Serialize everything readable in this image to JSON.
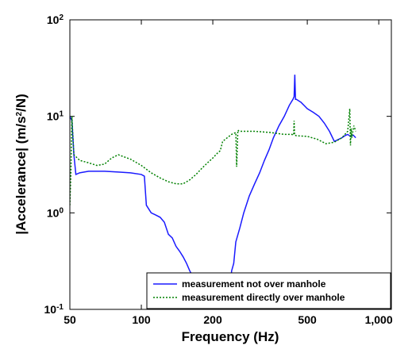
{
  "chart_data": {
    "type": "line",
    "xlabel": "Frequency (Hz)",
    "ylabel": [
      "|Accelerance| (m/s",
      "2",
      "/N)"
    ],
    "xscale": "log",
    "yscale": "log",
    "xlim": [
      50,
      1130
    ],
    "ylim": [
      0.1,
      100
    ],
    "xticks": [
      50,
      100,
      200,
      500,
      {
        "value": 1000,
        "label": "1,000"
      }
    ],
    "yticks": [
      {
        "value": 0.1,
        "label": "10",
        "sup": "-1"
      },
      {
        "value": 1,
        "label": "10",
        "sup": "0"
      },
      {
        "value": 10,
        "label": "10",
        "sup": "1"
      },
      {
        "value": 100,
        "label": "10",
        "sup": "2"
      }
    ],
    "legend": "lower right",
    "series": [
      {
        "name": "measurement not over manhole",
        "color": "#1a1aff",
        "dash": "solid",
        "x": [
          50,
          51,
          52,
          53,
          55,
          60,
          70,
          80,
          90,
          100,
          103,
          105,
          110,
          115,
          120,
          125,
          130,
          135,
          140,
          145,
          150,
          155,
          160,
          165,
          170,
          175,
          180,
          185,
          190,
          200,
          210,
          220,
          230,
          235,
          240,
          245,
          250,
          260,
          270,
          285,
          300,
          315,
          330,
          345,
          360,
          380,
          400,
          420,
          435,
          440,
          443,
          446,
          450,
          470,
          500,
          530,
          560,
          590,
          620,
          650,
          680,
          700,
          720,
          740,
          760,
          780,
          800
        ],
        "values": [
          10,
          9,
          4,
          2.5,
          2.6,
          2.7,
          2.7,
          2.65,
          2.6,
          2.5,
          2.4,
          1.2,
          1.0,
          0.95,
          0.9,
          0.8,
          0.6,
          0.55,
          0.45,
          0.4,
          0.35,
          0.3,
          0.25,
          0.22,
          0.2,
          0.18,
          0.15,
          0.12,
          0.1,
          0.09,
          0.08,
          0.09,
          0.1,
          0.12,
          0.25,
          0.3,
          0.5,
          0.7,
          1.0,
          1.5,
          2.0,
          2.6,
          3.5,
          4.5,
          6,
          8,
          10,
          13,
          15,
          16,
          27,
          15,
          15,
          14,
          12,
          11,
          10,
          8.5,
          7,
          5.5,
          5.8,
          6.0,
          6.3,
          6.5,
          6.2,
          6.4,
          6.0
        ]
      },
      {
        "name": "measurement directly over manhole",
        "color": "#008000",
        "dash": "dotted",
        "x": [
          50,
          50.5,
          51,
          52,
          55,
          60,
          65,
          70,
          75,
          80,
          90,
          100,
          110,
          120,
          130,
          140,
          150,
          160,
          170,
          180,
          190,
          200,
          210,
          215,
          220,
          230,
          240,
          250,
          252,
          255,
          258,
          270,
          300,
          350,
          400,
          430,
          438,
          440,
          442,
          450,
          500,
          550,
          600,
          650,
          700,
          740,
          755,
          760,
          765,
          770,
          785,
          800
        ],
        "values": [
          1.2,
          2.5,
          10,
          4,
          3.5,
          3.3,
          3.1,
          3.2,
          3.7,
          4.0,
          3.6,
          3.1,
          2.6,
          2.3,
          2.1,
          2.0,
          2.0,
          2.2,
          2.5,
          2.9,
          3.3,
          3.7,
          4.2,
          4.4,
          5.5,
          6.0,
          6.5,
          6.8,
          3.0,
          7.2,
          7.0,
          7.0,
          7.0,
          6.8,
          6.5,
          6.5,
          6.4,
          9,
          6.4,
          6.3,
          6.2,
          5.8,
          5.2,
          5.4,
          6.0,
          7,
          12,
          5,
          7.5,
          6,
          8,
          7
        ]
      }
    ]
  }
}
